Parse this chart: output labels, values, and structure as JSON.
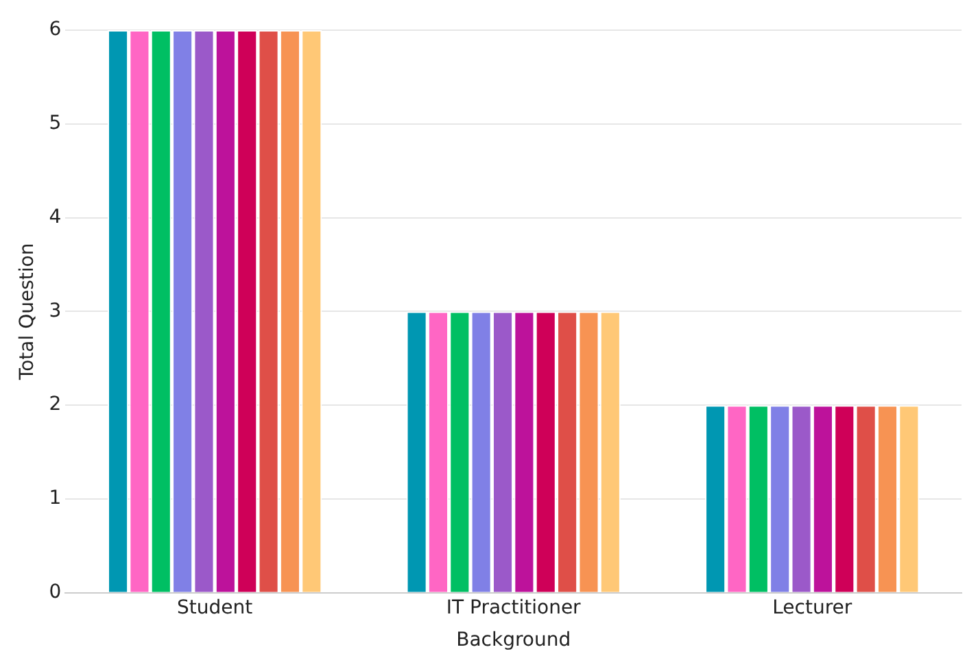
{
  "chart_data": {
    "type": "bar",
    "xlabel": "Background",
    "ylabel": "Total Question",
    "categories": [
      "Student",
      "IT Practitioner",
      "Lecturer"
    ],
    "series": [
      {
        "color": "#0097b2",
        "values": [
          6,
          3,
          2
        ]
      },
      {
        "color": "#ff66c4",
        "values": [
          6,
          3,
          2
        ]
      },
      {
        "color": "#00bf63",
        "values": [
          6,
          3,
          2
        ]
      },
      {
        "color": "#8080e6",
        "values": [
          6,
          3,
          2
        ]
      },
      {
        "color": "#9b59c9",
        "values": [
          6,
          3,
          2
        ]
      },
      {
        "color": "#bd129b",
        "values": [
          6,
          3,
          2
        ]
      },
      {
        "color": "#cf0058",
        "values": [
          6,
          3,
          2
        ]
      },
      {
        "color": "#df4f48",
        "values": [
          6,
          3,
          2
        ]
      },
      {
        "color": "#f79353",
        "values": [
          6,
          3,
          2
        ]
      },
      {
        "color": "#ffc876",
        "values": [
          6,
          3,
          2
        ]
      }
    ],
    "ylim": [
      0,
      6
    ],
    "yticks": [
      0,
      1,
      2,
      3,
      4,
      5,
      6
    ],
    "grid": "y",
    "legend": false
  }
}
